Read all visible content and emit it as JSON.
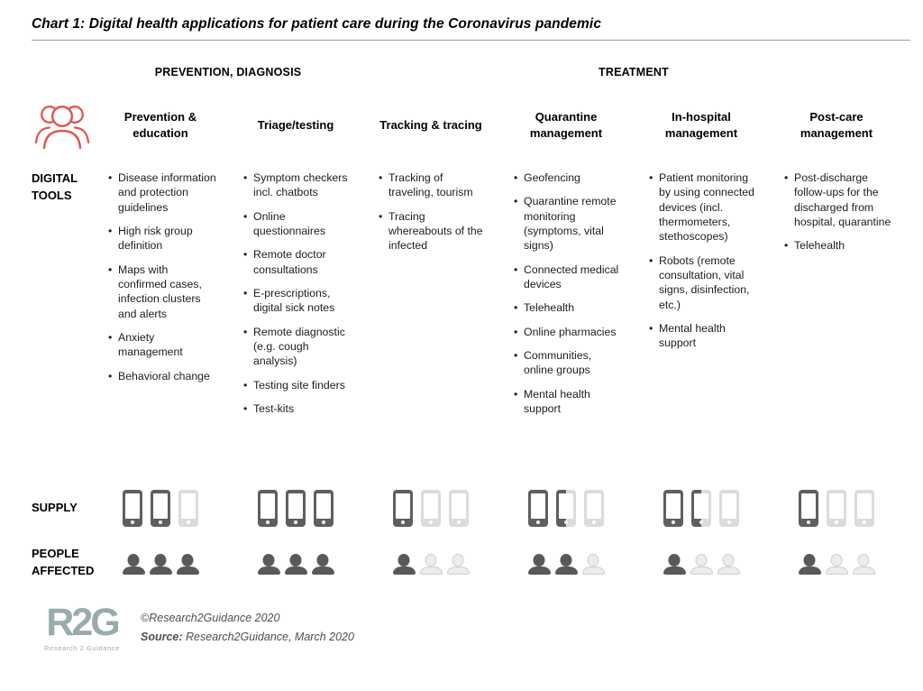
{
  "title": "Chart 1: Digital health applications for patient care during the Coronavirus pandemic",
  "phase_headers": {
    "prevention": "PREVENTION, DIAGNOSIS",
    "treatment": "TREATMENT"
  },
  "row_labels": {
    "tools": "DIGITAL TOOLS",
    "supply": "SUPPLY",
    "people": "PEOPLE AFFECTED"
  },
  "colors": {
    "accent_red": "#E0584E",
    "icon_dark": "#5F5F5F",
    "icon_light": "#DCDCDC",
    "logo_gray_blue": "#9AABAE"
  },
  "legend_note": "icon fills: dark = high, half = medium, light = low (out of 3)",
  "columns": [
    {
      "header": "Prevention & education",
      "tools": [
        "Disease information and protection guidelines",
        "High risk group definition",
        "Maps with confirmed cases, infection clusters and alerts",
        "Anxiety management",
        "Behavioral change"
      ],
      "supply": [
        "dark",
        "dark",
        "light"
      ],
      "supply_level": 2,
      "people": [
        "dark",
        "dark",
        "dark"
      ],
      "people_level": 3
    },
    {
      "header": "Triage/testing",
      "tools": [
        "Symptom checkers incl. chatbots",
        "Online questionnaires",
        "Remote doctor consultations",
        "E-prescriptions, digital sick notes",
        "Remote diagnostic (e.g. cough analysis)",
        "Testing site finders",
        "Test-kits"
      ],
      "supply": [
        "dark",
        "dark",
        "dark"
      ],
      "supply_level": 3,
      "people": [
        "dark",
        "dark",
        "dark"
      ],
      "people_level": 3
    },
    {
      "header": "Tracking & tracing",
      "tools": [
        "Tracking of traveling, tourism",
        "Tracing whereabouts of the infected"
      ],
      "supply": [
        "dark",
        "light",
        "light"
      ],
      "supply_level": 1,
      "people": [
        "dark",
        "light",
        "light"
      ],
      "people_level": 1
    },
    {
      "header": "Quarantine management",
      "tools": [
        "Geofencing",
        "Quarantine remote monitoring (symptoms, vital signs)",
        "Connected medical devices",
        "Telehealth",
        "Online pharmacies",
        "Communities, online groups",
        "Mental health support"
      ],
      "supply": [
        "dark",
        "half",
        "light"
      ],
      "supply_level": 1.5,
      "people": [
        "dark",
        "dark",
        "light"
      ],
      "people_level": 2
    },
    {
      "header": "In-hospital management",
      "tools": [
        "Patient monitoring by using connected devices (incl. thermometers, stethoscopes)",
        "Robots (remote consultation, vital signs, disinfection, etc.)",
        "Mental health support"
      ],
      "supply": [
        "dark",
        "half",
        "light"
      ],
      "supply_level": 1.5,
      "people": [
        "dark",
        "light",
        "light"
      ],
      "people_level": 1
    },
    {
      "header": "Post-care management",
      "tools": [
        "Post-discharge follow-ups for the discharged from hospital, quarantine",
        "Telehealth"
      ],
      "supply": [
        "dark",
        "light",
        "light"
      ],
      "supply_level": 1,
      "people": [
        "dark",
        "light",
        "light"
      ],
      "people_level": 1
    }
  ],
  "footer": {
    "logo_text": "R2G",
    "logo_subtext": "Research 2 Guidance",
    "copyright": "©Research2Guidance 2020",
    "source_label": "Source:",
    "source_text": "Research2Guidance, March 2020"
  }
}
